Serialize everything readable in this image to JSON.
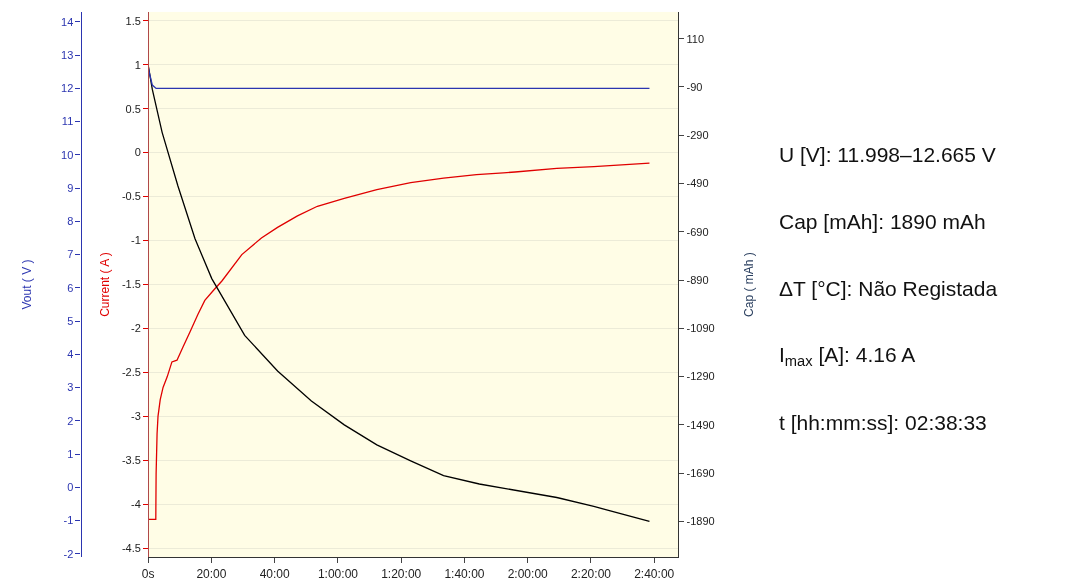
{
  "chart_data": [
    {
      "type": "line",
      "ylabel": "Current ( A )",
      "y2label": "Cap ( mAh )",
      "y3label": "Vout ( V )",
      "xlim": [
        0,
        167.6
      ],
      "xticks": [
        {
          "value": 0,
          "label": "0s"
        },
        {
          "value": 20,
          "label": "20:00"
        },
        {
          "value": 40,
          "label": "40:00"
        },
        {
          "value": 60,
          "label": "1:00:00"
        },
        {
          "value": 80,
          "label": "1:20:00"
        },
        {
          "value": 100,
          "label": "1:40:00"
        },
        {
          "value": 120,
          "label": "2:00:00"
        },
        {
          "value": 140,
          "label": "2:20:00"
        },
        {
          "value": 160,
          "label": "2:40:00"
        }
      ],
      "ylim": [
        -4.6,
        1.6
      ],
      "yticks": [
        1.5,
        1,
        0.5,
        0,
        -0.5,
        -1,
        -1.5,
        -2,
        -2.5,
        -3,
        -3.5,
        -4,
        -4.5
      ],
      "y2lim": [
        -2038,
        221
      ],
      "y2ticks": [
        110,
        -90,
        -290,
        -490,
        -690,
        -890,
        -1090,
        -1290,
        -1490,
        -1690,
        -1890
      ],
      "y3lim": [
        -2.1,
        14.3
      ],
      "y3ticks": [
        14,
        13,
        12,
        11,
        10,
        9,
        8,
        7,
        6,
        5,
        4,
        3,
        2,
        1,
        0,
        -1,
        -2
      ],
      "grid": "y",
      "marker": "none",
      "line_style": "solid",
      "series": [
        {
          "color": "#2b35b0",
          "axis": "y3",
          "x": [
            0,
            0.3,
            1.3,
            2.5,
            158.5
          ],
          "values": [
            12.66,
            12.5,
            12.1,
            12.0,
            12.0
          ]
        },
        {
          "color": "#e00000",
          "x": [
            0,
            0,
            2.4,
            2.5,
            2.8,
            3.1,
            3.8,
            4.7,
            6.0,
            7.5,
            9.1,
            11.0,
            13.2,
            15.7,
            17.9,
            20.8,
            23.3,
            29.6,
            35.8,
            40.9,
            47.2,
            53.5,
            62.0,
            72.3,
            83.0,
            93.4,
            103.8,
            112.3,
            116.0,
            129.2,
            140.9,
            158.5
          ],
          "values": [
            0,
            -4.17,
            -4.17,
            -3.65,
            -3.2,
            -3.0,
            -2.81,
            -2.67,
            -2.55,
            -2.38,
            -2.36,
            -2.21,
            -2.04,
            -1.84,
            -1.68,
            -1.56,
            -1.46,
            -1.16,
            -0.97,
            -0.85,
            -0.72,
            -0.61,
            -0.52,
            -0.42,
            -0.34,
            -0.29,
            -0.25,
            -0.23,
            -0.22,
            -0.18,
            -0.16,
            -0.12
          ]
        },
        {
          "color": "#000000",
          "axis": "y2",
          "x": [
            0,
            1.3,
            4.4,
            9.4,
            14.8,
            20.1,
            30.5,
            40.9,
            51.6,
            62.0,
            72.3,
            83.0,
            93.4,
            104.7,
            129.2,
            140.9,
            158.5
          ],
          "values": [
            0,
            -100,
            -278,
            -500,
            -719,
            -884,
            -1119,
            -1267,
            -1391,
            -1490,
            -1573,
            -1639,
            -1700,
            -1735,
            -1791,
            -1828,
            -1890
          ]
        }
      ]
    },
    {
      "type": "other",
      "annotations": [
        "U [V]: 11.998–12.665 V",
        "Cap [mAh]: 1890 mAh",
        "ΔT [°C]: Não Registada",
        "I$_{max}$ [A]: 4.16 A",
        "t [hh:mm:ss]: 02:38:33"
      ]
    }
  ]
}
